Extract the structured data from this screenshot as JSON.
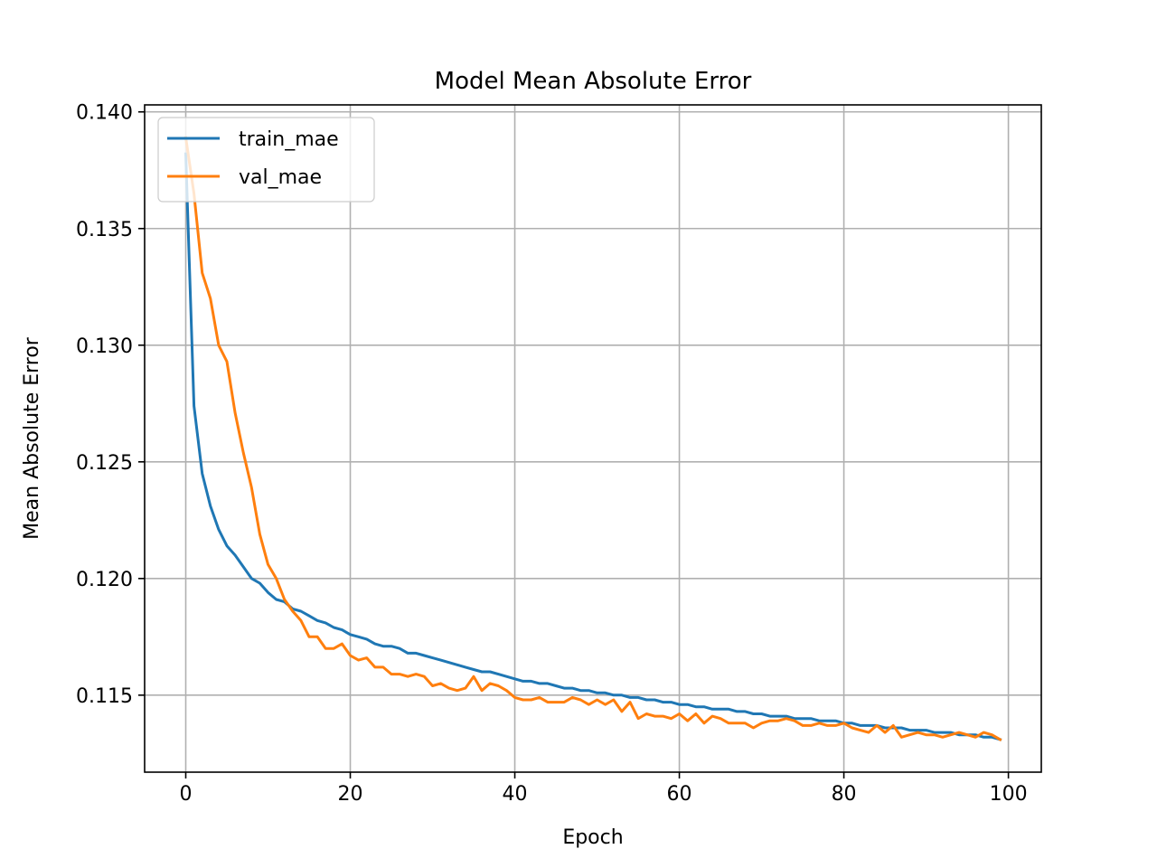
{
  "chart_data": {
    "type": "line",
    "title": "Model Mean Absolute Error",
    "xlabel": "Epoch",
    "ylabel": "Mean Absolute Error",
    "xlim": [
      -5,
      104
    ],
    "ylim": [
      0.1117,
      0.1403
    ],
    "xticks": [
      0,
      20,
      40,
      60,
      80,
      100
    ],
    "xtick_labels": [
      "0",
      "20",
      "40",
      "60",
      "80",
      "100"
    ],
    "yticks": [
      0.115,
      0.12,
      0.125,
      0.13,
      0.135,
      0.14
    ],
    "ytick_labels": [
      "0.115",
      "0.120",
      "0.125",
      "0.130",
      "0.135",
      "0.140"
    ],
    "grid": true,
    "legend_position": "upper-left",
    "series": [
      {
        "name": "train_mae",
        "color": "#1f77b4",
        "values": [
          0.1382,
          0.1274,
          0.1245,
          0.1231,
          0.1221,
          0.1214,
          0.121,
          0.1205,
          0.12,
          0.1198,
          0.1194,
          0.1191,
          0.119,
          0.1187,
          0.1186,
          0.1184,
          0.1182,
          0.1181,
          0.1179,
          0.1178,
          0.1176,
          0.1175,
          0.1174,
          0.1172,
          0.1171,
          0.1171,
          0.117,
          0.1168,
          0.1168,
          0.1167,
          0.1166,
          0.1165,
          0.1164,
          0.1163,
          0.1162,
          0.1161,
          0.116,
          0.116,
          0.1159,
          0.1158,
          0.1157,
          0.1156,
          0.1156,
          0.1155,
          0.1155,
          0.1154,
          0.1153,
          0.1153,
          0.1152,
          0.1152,
          0.1151,
          0.1151,
          0.115,
          0.115,
          0.1149,
          0.1149,
          0.1148,
          0.1148,
          0.1147,
          0.1147,
          0.1146,
          0.1146,
          0.1145,
          0.1145,
          0.1144,
          0.1144,
          0.1144,
          0.1143,
          0.1143,
          0.1142,
          0.1142,
          0.1141,
          0.1141,
          0.1141,
          0.114,
          0.114,
          0.114,
          0.1139,
          0.1139,
          0.1139,
          0.1138,
          0.1138,
          0.1137,
          0.1137,
          0.1137,
          0.1136,
          0.1136,
          0.1136,
          0.1135,
          0.1135,
          0.1135,
          0.1134,
          0.1134,
          0.1134,
          0.1133,
          0.1133,
          0.1133,
          0.1132,
          0.1132,
          0.1131
        ]
      },
      {
        "name": "val_mae",
        "color": "#ff7f0e",
        "values": [
          0.1389,
          0.1365,
          0.1331,
          0.132,
          0.13,
          0.1293,
          0.1271,
          0.1254,
          0.1239,
          0.1219,
          0.1206,
          0.12,
          0.1191,
          0.1186,
          0.1182,
          0.1175,
          0.1175,
          0.117,
          0.117,
          0.1172,
          0.1167,
          0.1165,
          0.1166,
          0.1162,
          0.1162,
          0.1159,
          0.1159,
          0.1158,
          0.1159,
          0.1158,
          0.1154,
          0.1155,
          0.1153,
          0.1152,
          0.1153,
          0.1158,
          0.1152,
          0.1155,
          0.1154,
          0.1152,
          0.1149,
          0.1148,
          0.1148,
          0.1149,
          0.1147,
          0.1147,
          0.1147,
          0.1149,
          0.1148,
          0.1146,
          0.1148,
          0.1146,
          0.1148,
          0.1143,
          0.1147,
          0.114,
          0.1142,
          0.1141,
          0.1141,
          0.114,
          0.1142,
          0.1139,
          0.1142,
          0.1138,
          0.1141,
          0.114,
          0.1138,
          0.1138,
          0.1138,
          0.1136,
          0.1138,
          0.1139,
          0.1139,
          0.114,
          0.1139,
          0.1137,
          0.1137,
          0.1138,
          0.1137,
          0.1137,
          0.1138,
          0.1136,
          0.1135,
          0.1134,
          0.1137,
          0.1134,
          0.1137,
          0.1132,
          0.1133,
          0.1134,
          0.1133,
          0.1133,
          0.1132,
          0.1133,
          0.1134,
          0.1133,
          0.1132,
          0.1134,
          0.1133,
          0.1131
        ]
      }
    ]
  }
}
